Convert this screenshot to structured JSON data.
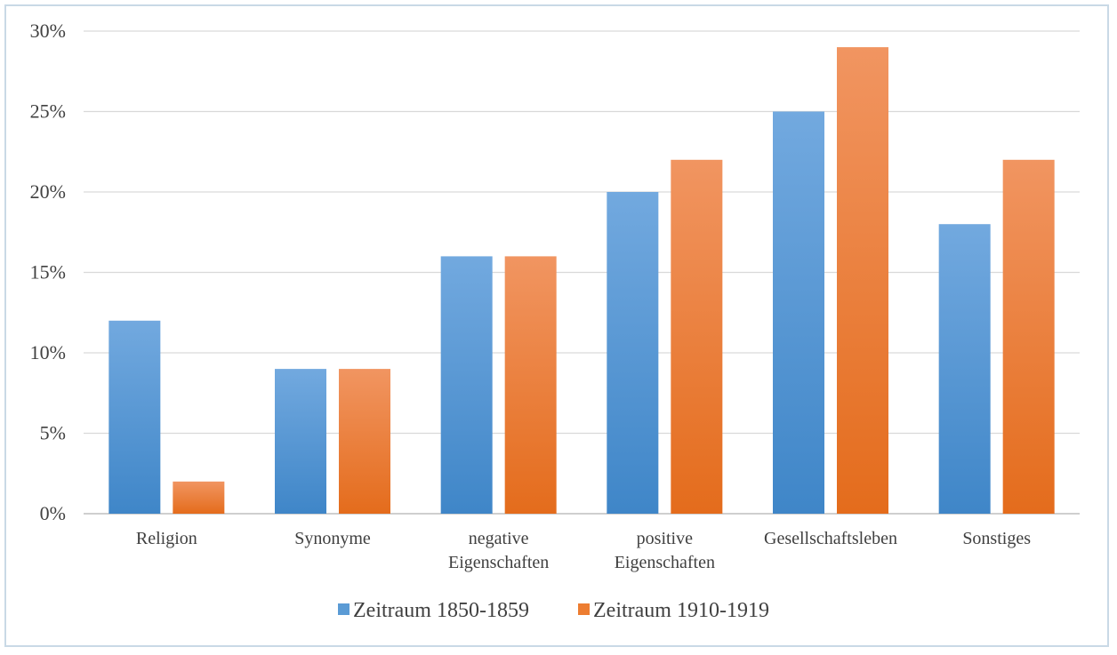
{
  "chart_data": {
    "type": "bar",
    "title": "",
    "xlabel": "",
    "ylabel": "",
    "categories": [
      [
        "Religion"
      ],
      [
        "Synonyme"
      ],
      [
        "negative",
        "Eigenschaften"
      ],
      [
        "positive",
        "Eigenschaften"
      ],
      [
        "Gesellschaftsleben"
      ],
      [
        "Sonstiges"
      ]
    ],
    "series": [
      {
        "name": "Zeitraum 1850-1859",
        "color": "#5b9bd5",
        "values": [
          12,
          9,
          16,
          20,
          25,
          18
        ]
      },
      {
        "name": "Zeitraum 1910-1919",
        "color": "#ed7d31",
        "values": [
          2,
          9,
          16,
          22,
          29,
          22
        ]
      }
    ],
    "ylim": [
      0,
      30
    ],
    "yticks": [
      0,
      5,
      10,
      15,
      20,
      25,
      30
    ],
    "ytick_labels": [
      "0%",
      "5%",
      "10%",
      "15%",
      "20%",
      "25%",
      "30%"
    ],
    "grid": true,
    "legend": "bottom"
  }
}
